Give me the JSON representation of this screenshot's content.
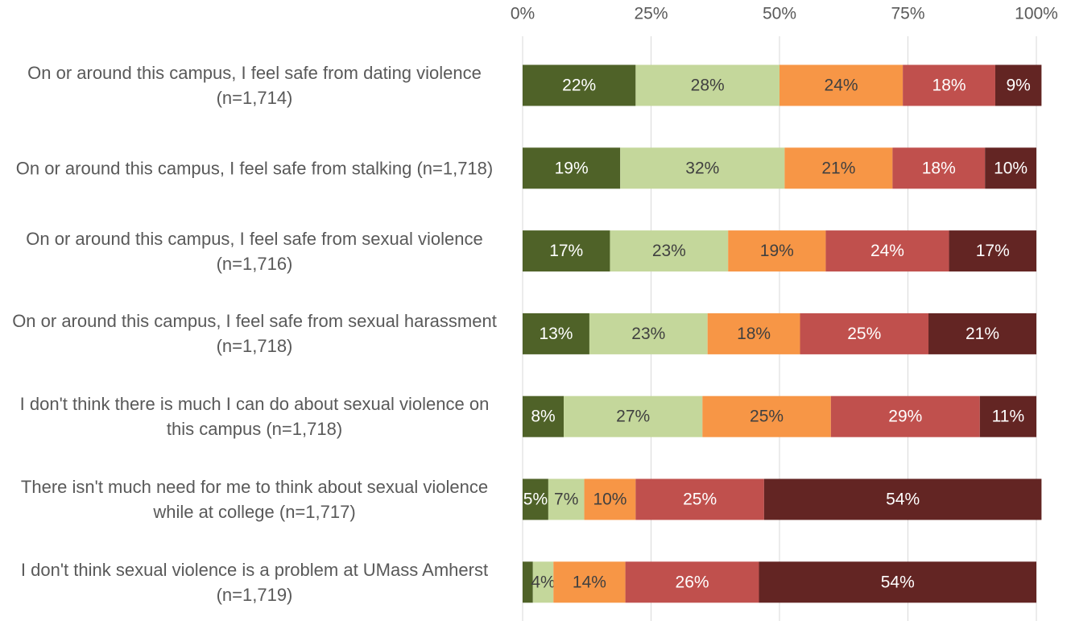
{
  "chart_data": {
    "type": "stacked-bar-horizontal",
    "categories": [
      "On or around this campus, I feel safe from dating violence (n=1,714)",
      "On or around this campus, I feel safe from stalking (n=1,718)",
      "On or around this campus, I feel safe from sexual violence (n=1,716)",
      "On or around this campus, I feel safe from sexual harassment (n=1,718)",
      "I don't think there is much I can do about sexual violence on this campus (n=1,718)",
      "There isn't much need for me to think about sexual violence while at college (n=1,717)",
      "I don't think sexual violence is a problem at UMass Amherst (n=1,719)"
    ],
    "series": [
      {
        "color": "#4f6228",
        "label_color": "#ffffff",
        "values": [
          22,
          19,
          17,
          13,
          8,
          5,
          2
        ],
        "value_labels": [
          "22%",
          "19%",
          "17%",
          "13%",
          "8%",
          "5%",
          null
        ]
      },
      {
        "color": "#c4d79b",
        "label_color": "#404040",
        "values": [
          28,
          32,
          23,
          23,
          27,
          7,
          4
        ],
        "value_labels": [
          "28%",
          "32%",
          "23%",
          "23%",
          "27%",
          "7%",
          "4%"
        ]
      },
      {
        "color": "#f79646",
        "label_color": "#404040",
        "values": [
          24,
          21,
          19,
          18,
          25,
          10,
          14
        ],
        "value_labels": [
          "24%",
          "21%",
          "19%",
          "18%",
          "25%",
          "10%",
          "14%"
        ]
      },
      {
        "color": "#c0504d",
        "label_color": "#ffffff",
        "values": [
          18,
          18,
          24,
          25,
          29,
          25,
          26
        ],
        "value_labels": [
          "18%",
          "18%",
          "24%",
          "25%",
          "29%",
          "25%",
          "26%"
        ]
      },
      {
        "color": "#632523",
        "label_color": "#ffffff",
        "values": [
          9,
          10,
          17,
          21,
          11,
          54,
          54
        ],
        "value_labels": [
          "9%",
          "10%",
          "17%",
          "21%",
          "11%",
          "54%",
          "54%"
        ]
      }
    ],
    "xlim": [
      0,
      100
    ],
    "xticks": [
      {
        "value": 0,
        "label": "0%"
      },
      {
        "value": 25,
        "label": "25%"
      },
      {
        "value": 50,
        "label": "50%"
      },
      {
        "value": 75,
        "label": "75%"
      },
      {
        "value": 100,
        "label": "100%"
      }
    ],
    "grid": true
  }
}
